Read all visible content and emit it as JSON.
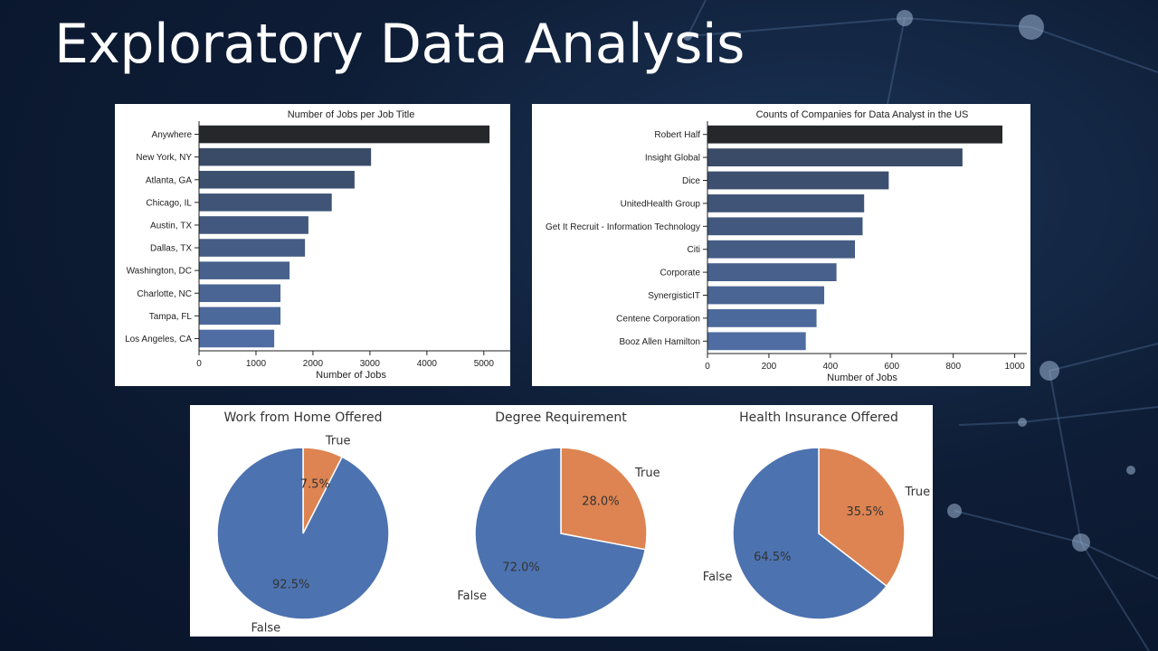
{
  "slide": {
    "title": "Exploratory Data Analysis"
  },
  "charts": {
    "jobs_by_location": {
      "title": "Number of Jobs per Job Title",
      "xlabel": "Number of Jobs",
      "ticks": [
        "0",
        "1000",
        "2000",
        "3000",
        "4000",
        "5000"
      ]
    },
    "companies": {
      "title": "Counts of Companies for Data Analyst in the US",
      "xlabel": "Number of Jobs",
      "ticks": [
        "0",
        "200",
        "400",
        "600",
        "800",
        "1000"
      ]
    },
    "pies": [
      {
        "title": "Work from Home Offered",
        "label_true": "True",
        "label_false": "False",
        "pct_true": "7.5%",
        "pct_false": "92.5%"
      },
      {
        "title": "Degree Requirement",
        "label_true": "True",
        "label_false": "False",
        "pct_true": "28.0%",
        "pct_false": "72.0%"
      },
      {
        "title": "Health Insurance Offered",
        "label_true": "True",
        "label_false": "False",
        "pct_true": "35.5%",
        "pct_false": "64.5%"
      }
    ]
  },
  "colors": {
    "pie_true": "#dd8452",
    "pie_false": "#4c72b0",
    "bar_dark": "#25272b",
    "bar_light": "#4f6ea3"
  },
  "chart_data": [
    {
      "type": "bar",
      "orientation": "horizontal",
      "title": "Number of Jobs per Job Title",
      "xlabel": "Number of Jobs",
      "ylabel": "",
      "xlim": [
        0,
        5400
      ],
      "categories": [
        "Anywhere",
        "New York, NY",
        "Atlanta, GA",
        "Chicago, IL",
        "Austin, TX",
        "Dallas, TX",
        "Washington, DC",
        "Charlotte, NC",
        "Tampa, FL",
        "Los Angeles, CA"
      ],
      "values": [
        5100,
        3020,
        2730,
        2330,
        1920,
        1860,
        1590,
        1430,
        1430,
        1320
      ],
      "grid": false
    },
    {
      "type": "bar",
      "orientation": "horizontal",
      "title": "Counts of Companies for Data Analyst in the US",
      "xlabel": "Number of Jobs",
      "ylabel": "",
      "xlim": [
        0,
        1010
      ],
      "categories": [
        "Robert Half",
        "Insight Global",
        "Dice",
        "UnitedHealth Group",
        "Get It Recruit - Information Technology",
        "Citi",
        "Corporate",
        "SynergisticIT",
        "Centene Corporation",
        "Booz Allen Hamilton"
      ],
      "values": [
        960,
        830,
        590,
        510,
        505,
        480,
        420,
        380,
        355,
        320
      ],
      "grid": false
    },
    {
      "type": "pie",
      "title": "Work from Home Offered",
      "categories": [
        "True",
        "False"
      ],
      "values": [
        7.5,
        92.5
      ]
    },
    {
      "type": "pie",
      "title": "Degree Requirement",
      "categories": [
        "True",
        "False"
      ],
      "values": [
        28.0,
        72.0
      ]
    },
    {
      "type": "pie",
      "title": "Health Insurance Offered",
      "categories": [
        "True",
        "False"
      ],
      "values": [
        35.5,
        64.5
      ]
    }
  ]
}
